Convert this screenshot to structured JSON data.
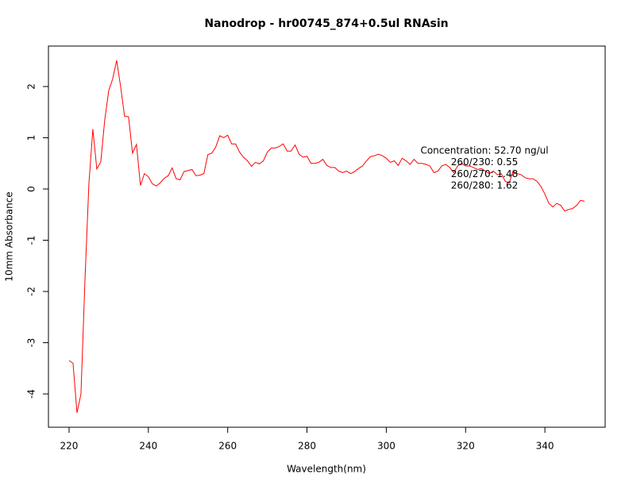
{
  "chart_data": {
    "type": "line",
    "title": "Nanodrop - hr00745_874+0.5ul RNAsin",
    "x_label": "Wavelength(nm)",
    "y_label": "10mm Absorbance",
    "annotations": [
      "Concentration: 52.70 ng/ul",
      "260/230: 0.55",
      "260/270: 1.48",
      "260/280: 1.62"
    ],
    "color": "#ff0000",
    "x": [
      220,
      221,
      222,
      223,
      224,
      225,
      226,
      227,
      228,
      229,
      230,
      231,
      232,
      233,
      234,
      235,
      236,
      237,
      238,
      239,
      240,
      241,
      242,
      243,
      244,
      245,
      246,
      247,
      248,
      249,
      250,
      251,
      252,
      253,
      254,
      255,
      256,
      257,
      258,
      259,
      260,
      261,
      262,
      263,
      264,
      265,
      266,
      267,
      268,
      269,
      270,
      271,
      272,
      273,
      274,
      275,
      276,
      277,
      278,
      279,
      280,
      281,
      282,
      283,
      284,
      285,
      286,
      287,
      288,
      289,
      290,
      291,
      292,
      293,
      294,
      295,
      296,
      297,
      298,
      299,
      300,
      301,
      302,
      303,
      304,
      305,
      306,
      307,
      308,
      309,
      310,
      311,
      312,
      313,
      314,
      315,
      316,
      317,
      318,
      319,
      320,
      321,
      322,
      323,
      324,
      325,
      326,
      327,
      328,
      329,
      330,
      331,
      332,
      333,
      334,
      335,
      336,
      337,
      338,
      339,
      340,
      341,
      342,
      343,
      344,
      345,
      346,
      347,
      348,
      349,
      350
    ],
    "values": [
      -3.35,
      -3.4,
      -4.37,
      -4.0,
      -1.8,
      0.1,
      1.17,
      0.39,
      0.53,
      1.35,
      1.92,
      2.15,
      2.51,
      2.0,
      1.42,
      1.41,
      0.7,
      0.87,
      0.07,
      0.3,
      0.24,
      0.1,
      0.06,
      0.12,
      0.21,
      0.26,
      0.41,
      0.2,
      0.18,
      0.34,
      0.36,
      0.38,
      0.26,
      0.27,
      0.3,
      0.67,
      0.7,
      0.82,
      1.04,
      1.0,
      1.05,
      0.88,
      0.88,
      0.72,
      0.62,
      0.55,
      0.44,
      0.52,
      0.49,
      0.55,
      0.72,
      0.8,
      0.8,
      0.83,
      0.88,
      0.74,
      0.74,
      0.86,
      0.68,
      0.62,
      0.64,
      0.5,
      0.5,
      0.52,
      0.58,
      0.46,
      0.42,
      0.42,
      0.35,
      0.32,
      0.35,
      0.3,
      0.34,
      0.4,
      0.45,
      0.55,
      0.63,
      0.65,
      0.68,
      0.65,
      0.6,
      0.52,
      0.55,
      0.46,
      0.6,
      0.55,
      0.48,
      0.58,
      0.5,
      0.5,
      0.48,
      0.45,
      0.32,
      0.35,
      0.45,
      0.48,
      0.42,
      0.32,
      0.45,
      0.5,
      0.45,
      0.45,
      0.42,
      0.38,
      0.4,
      0.35,
      0.3,
      0.35,
      0.28,
      0.3,
      0.15,
      0.12,
      0.35,
      0.3,
      0.28,
      0.22,
      0.2,
      0.2,
      0.15,
      0.05,
      -0.1,
      -0.28,
      -0.35,
      -0.28,
      -0.32,
      -0.43,
      -0.4,
      -0.38,
      -0.32,
      -0.22,
      -0.24
    ],
    "xlim": [
      214.8,
      355.2
    ],
    "xticks": [
      220,
      240,
      260,
      280,
      300,
      320,
      340
    ],
    "ylim": [
      -4.65,
      2.79
    ],
    "yticks": [
      -4,
      -3,
      -2,
      -1,
      0,
      1,
      2
    ]
  }
}
